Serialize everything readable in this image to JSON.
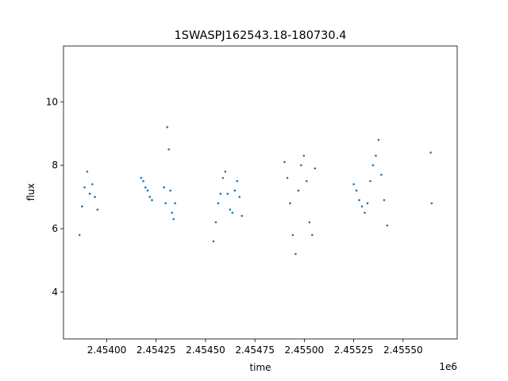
{
  "chart_data": {
    "type": "scatter",
    "title": "1SWASPJ162543.18-180730.4",
    "xlabel": "time",
    "ylabel": "flux",
    "x_offset_label": "1e6",
    "xlim": [
      2453781,
      2455774
    ],
    "ylim": [
      2.52,
      11.76
    ],
    "x_ticks": [
      2.454,
      2.45425,
      2.4545,
      2.45475,
      2.455,
      2.45525,
      2.4555
    ],
    "x_tick_labels": [
      "2.45400",
      "2.45425",
      "2.45450",
      "2.45475",
      "2.45500",
      "2.45525",
      "2.45550"
    ],
    "y_ticks": [
      4,
      6,
      8,
      10
    ],
    "y_tick_labels": [
      "4",
      "6",
      "8",
      "10"
    ],
    "grid": false,
    "legend": "none",
    "marker_color": "#1f77b4",
    "series": [
      {
        "x": [
          2453862,
          2453875,
          2453888,
          2453901,
          2453914,
          2453927,
          2453940,
          2453953,
          2454174,
          2454185,
          2454196,
          2454207,
          2454218,
          2454229,
          2454290,
          2454298,
          2454306,
          2454314,
          2454322,
          2454330,
          2454338,
          2454346,
          2454540,
          2454552,
          2454564,
          2454576,
          2454588,
          2454600,
          2454612,
          2454624,
          2454636,
          2454648,
          2454660,
          2454672,
          2454684,
          2454900,
          2454914,
          2454928,
          2454942,
          2454956,
          2454970,
          2454984,
          2454998,
          2455012,
          2455026,
          2455040,
          2455054,
          2455250,
          2455264,
          2455278,
          2455292,
          2455306,
          2455320,
          2455334,
          2455348,
          2455362,
          2455376,
          2455390,
          2455404,
          2455420,
          2455640,
          2455645
        ],
        "y": [
          5.8,
          6.7,
          7.3,
          7.8,
          7.1,
          7.4,
          7.0,
          6.6,
          7.6,
          7.5,
          7.3,
          7.2,
          7.0,
          6.9,
          7.3,
          6.8,
          9.2,
          8.5,
          7.2,
          6.5,
          6.3,
          6.8,
          5.6,
          6.2,
          6.8,
          7.1,
          7.6,
          7.8,
          7.1,
          6.6,
          6.5,
          7.2,
          7.5,
          7.0,
          6.4,
          8.1,
          7.6,
          6.8,
          5.8,
          5.2,
          7.2,
          8.0,
          8.3,
          7.5,
          6.2,
          5.8,
          7.9,
          7.4,
          7.2,
          6.9,
          6.7,
          6.5,
          6.8,
          7.5,
          8.0,
          8.3,
          8.8,
          7.7,
          6.9,
          6.1,
          8.4,
          6.8
        ]
      }
    ]
  }
}
